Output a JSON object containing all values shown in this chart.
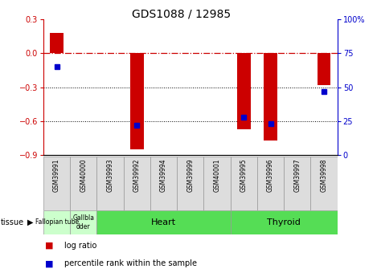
{
  "title": "GDS1088 / 12985",
  "samples": [
    "GSM39991",
    "GSM40000",
    "GSM39993",
    "GSM39992",
    "GSM39994",
    "GSM39999",
    "GSM40001",
    "GSM39995",
    "GSM39996",
    "GSM39997",
    "GSM39998"
  ],
  "log_ratios": [
    0.18,
    0.0,
    0.0,
    -0.85,
    0.0,
    0.0,
    0.0,
    -0.67,
    -0.77,
    0.0,
    -0.28
  ],
  "percentile_ranks": [
    65,
    0,
    0,
    22,
    0,
    0,
    0,
    28,
    23,
    0,
    47
  ],
  "percentile_show": [
    true,
    false,
    false,
    true,
    false,
    false,
    false,
    true,
    true,
    false,
    true
  ],
  "ylim_left": [
    -0.9,
    0.3
  ],
  "ylim_right": [
    0,
    100
  ],
  "yticks_left": [
    -0.9,
    -0.6,
    -0.3,
    0.0,
    0.3
  ],
  "yticks_right": [
    0,
    25,
    50,
    75,
    100
  ],
  "tissue_groups": [
    {
      "label": "Fallopian tube",
      "start": 0,
      "end": 1,
      "color": "#ccffcc"
    },
    {
      "label": "Gallbla\ndder",
      "start": 1,
      "end": 2,
      "color": "#ccffcc"
    },
    {
      "label": "Heart",
      "start": 2,
      "end": 7,
      "color": "#55dd55"
    },
    {
      "label": "Thyroid",
      "start": 7,
      "end": 11,
      "color": "#55dd55"
    }
  ],
  "bar_color": "#cc0000",
  "dot_color": "#0000cc",
  "zero_line_color": "#cc0000",
  "bg_color": "#ffffff",
  "tick_color_left": "#cc0000",
  "tick_color_right": "#0000cc",
  "bar_width": 0.5
}
